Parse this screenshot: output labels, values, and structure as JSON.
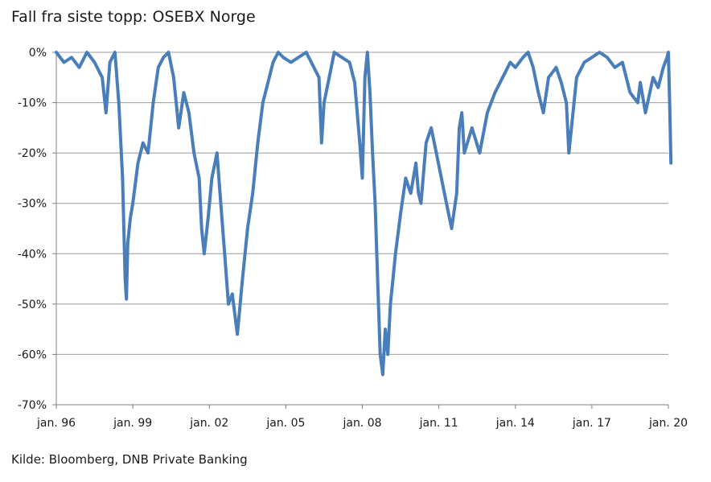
{
  "title": "Fall fra siste topp: OSEBX Norge",
  "source": "Kilde: Bloomberg, DNB Private Banking",
  "chart_data": {
    "type": "line",
    "title": "Fall fra siste topp: OSEBX Norge",
    "xlabel": "",
    "ylabel": "",
    "ylim": [
      -70,
      0
    ],
    "y_ticks": [
      0,
      -10,
      -20,
      -30,
      -40,
      -50,
      -60,
      -70
    ],
    "y_tick_labels": [
      "0%",
      "-10%",
      "-20%",
      "-30%",
      "-40%",
      "-50%",
      "-60%",
      "-70%"
    ],
    "xlim": [
      1996.0,
      2020.0
    ],
    "x_ticks": [
      1996,
      1999,
      2002,
      2005,
      2008,
      2011,
      2014,
      2017,
      2020
    ],
    "x_tick_labels": [
      "jan. 96",
      "jan. 99",
      "jan. 02",
      "jan. 05",
      "jan. 08",
      "jan. 11",
      "jan. 14",
      "jan. 17",
      "jan. 20"
    ],
    "grid": true,
    "legend": "none",
    "line_color": "#4a7ebb",
    "series": [
      {
        "x": [
          1996.0,
          1996.3,
          1996.6,
          1996.9,
          1997.2,
          1997.5,
          1997.8,
          1997.95,
          1998.1,
          1998.3,
          1998.45,
          1998.6,
          1998.7,
          1998.75,
          1998.8,
          1998.9,
          1999.0,
          1999.2,
          1999.4,
          1999.6,
          1999.8,
          2000.0,
          2000.2,
          2000.4,
          2000.6,
          2000.8,
          2001.0,
          2001.2,
          2001.4,
          2001.6,
          2001.7,
          2001.8,
          2001.95,
          2002.1,
          2002.3,
          2002.45,
          2002.6,
          2002.75,
          2002.9,
          2003.1,
          2003.3,
          2003.5,
          2003.7,
          2003.9,
          2004.1,
          2004.3,
          2004.5,
          2004.7,
          2004.9,
          2005.2,
          2005.5,
          2005.8,
          2006.1,
          2006.3,
          2006.4,
          2006.5,
          2006.7,
          2006.9,
          2007.2,
          2007.5,
          2007.7,
          2007.9,
          2008.0,
          2008.1,
          2008.2,
          2008.3,
          2008.4,
          2008.5,
          2008.6,
          2008.7,
          2008.8,
          2008.9,
          2009.0,
          2009.1,
          2009.2,
          2009.3,
          2009.5,
          2009.7,
          2009.9,
          2010.1,
          2010.2,
          2010.3,
          2010.5,
          2010.7,
          2010.9,
          2011.1,
          2011.3,
          2011.5,
          2011.7,
          2011.8,
          2011.9,
          2012.0,
          2012.3,
          2012.6,
          2012.9,
          2013.2,
          2013.5,
          2013.8,
          2014.0,
          2014.3,
          2014.5,
          2014.7,
          2014.9,
          2015.1,
          2015.3,
          2015.6,
          2015.8,
          2016.0,
          2016.1,
          2016.4,
          2016.7,
          2017.0,
          2017.3,
          2017.6,
          2017.9,
          2018.2,
          2018.5,
          2018.8,
          2018.9,
          2019.1,
          2019.4,
          2019.6,
          2019.8,
          2019.95,
          2020.0,
          2020.05,
          2020.1
        ],
        "y": [
          0,
          -2,
          -1,
          -3,
          0,
          -2,
          -5,
          -12,
          -2,
          0,
          -10,
          -25,
          -45,
          -49,
          -38,
          -33,
          -30,
          -22,
          -18,
          -20,
          -10,
          -3,
          -1,
          0,
          -5,
          -15,
          -8,
          -12,
          -20,
          -25,
          -35,
          -40,
          -33,
          -25,
          -20,
          -30,
          -40,
          -50,
          -48,
          -56,
          -45,
          -35,
          -28,
          -18,
          -10,
          -6,
          -2,
          0,
          -1,
          -2,
          -1,
          0,
          -3,
          -5,
          -18,
          -10,
          -5,
          0,
          -1,
          -2,
          -6,
          -18,
          -25,
          -5,
          0,
          -8,
          -20,
          -30,
          -45,
          -60,
          -64,
          -55,
          -60,
          -50,
          -45,
          -40,
          -32,
          -25,
          -28,
          -22,
          -28,
          -30,
          -18,
          -15,
          -20,
          -25,
          -30,
          -35,
          -28,
          -15,
          -12,
          -20,
          -15,
          -20,
          -12,
          -8,
          -5,
          -2,
          -3,
          -1,
          0,
          -3,
          -8,
          -12,
          -5,
          -3,
          -6,
          -10,
          -20,
          -5,
          -2,
          -1,
          0,
          -1,
          -3,
          -2,
          -8,
          -10,
          -6,
          -12,
          -5,
          -7,
          -3,
          -1,
          0,
          -10,
          -22
        ]
      }
    ]
  }
}
